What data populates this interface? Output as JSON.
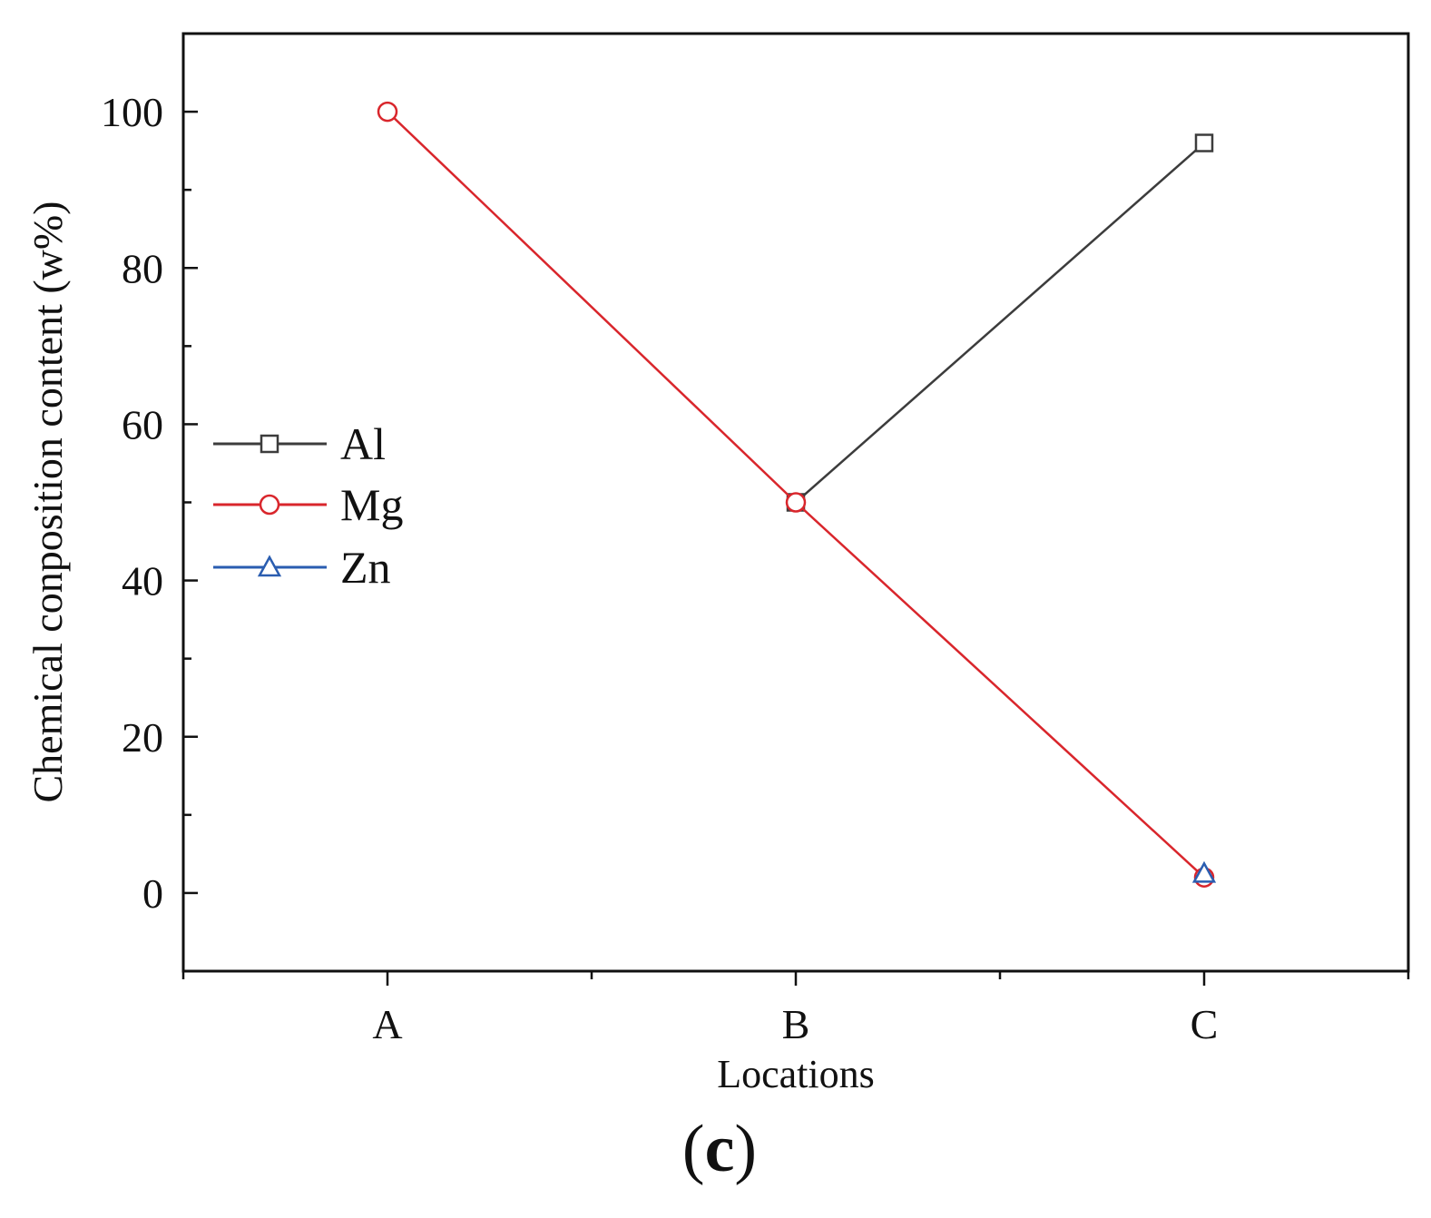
{
  "chart_data": {
    "type": "line",
    "categories": [
      "A",
      "B",
      "C"
    ],
    "xlabel": "Locations",
    "ylabel": "Chemical conposition content (w%)",
    "ylim": [
      -10,
      110
    ],
    "yticks": [
      0,
      20,
      40,
      60,
      80,
      100
    ],
    "grid": false,
    "legend_position": "middle-left",
    "series": [
      {
        "name": "Al",
        "values": [
          null,
          50,
          96
        ],
        "color": "#3c3c3c",
        "marker": "square"
      },
      {
        "name": "Mg",
        "values": [
          100,
          50,
          2
        ],
        "color": "#d9262c",
        "marker": "circle"
      },
      {
        "name": "Zn",
        "values": [
          null,
          null,
          2.5
        ],
        "color": "#2a5db0",
        "marker": "triangle"
      }
    ],
    "panel_label": {
      "open": "(",
      "letter": "c",
      "close": ")"
    }
  }
}
